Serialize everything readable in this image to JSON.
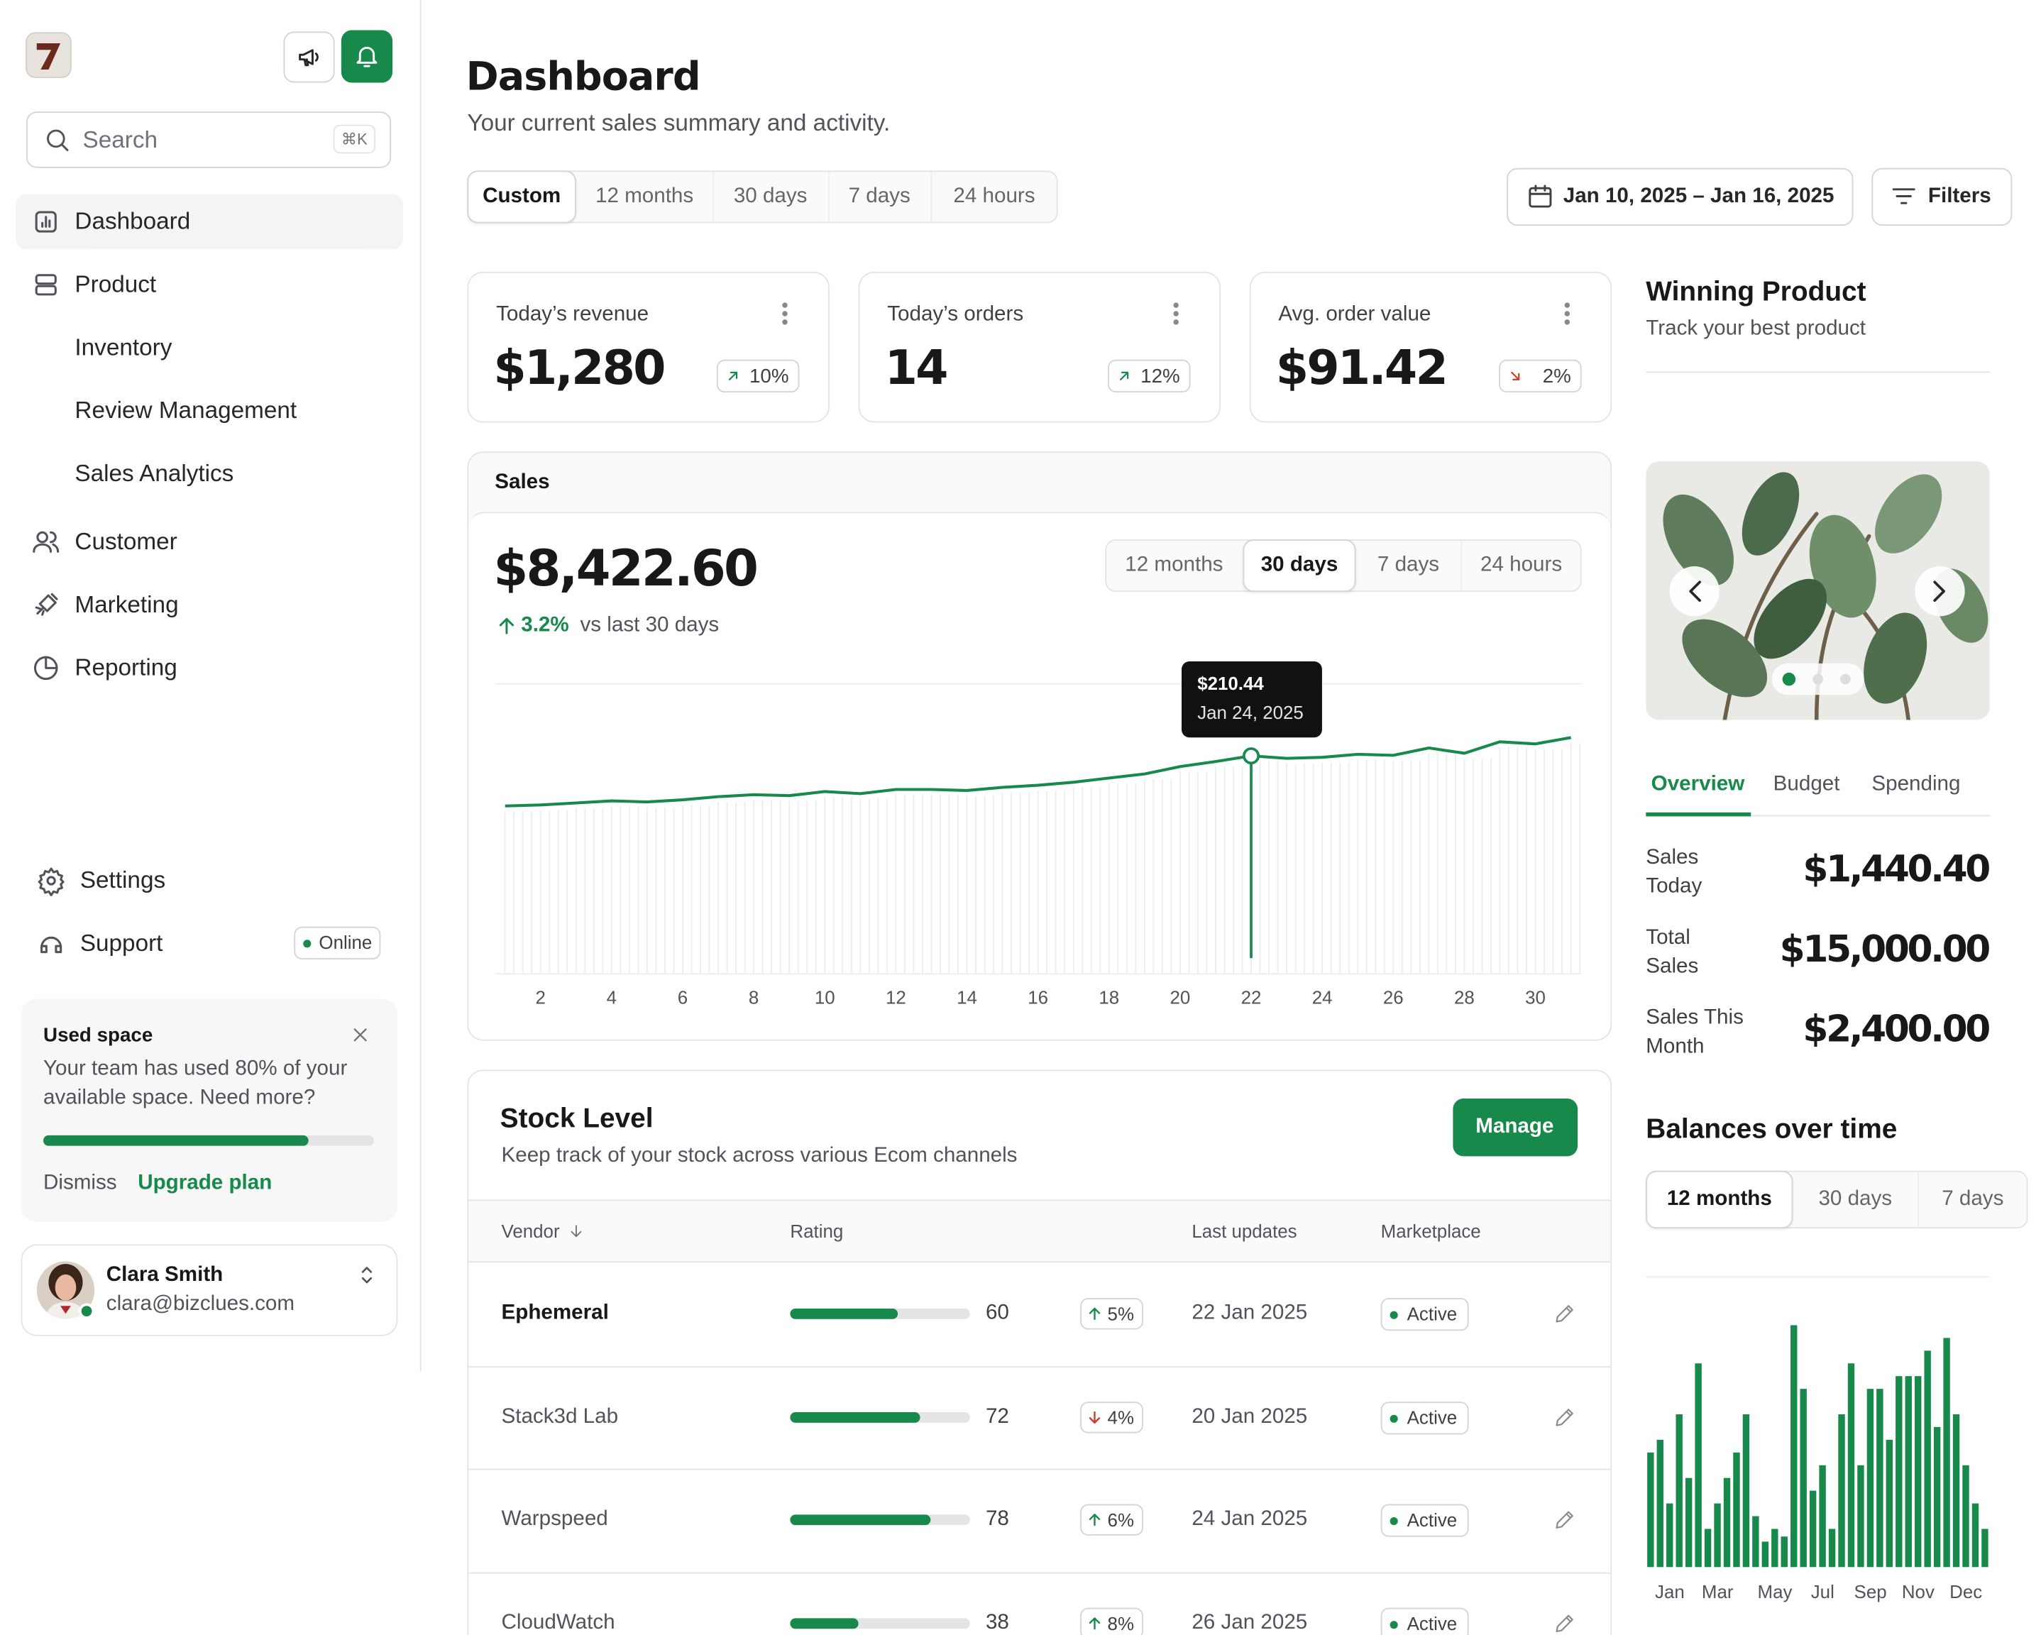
{
  "sidebar": {
    "search": {
      "placeholder": "Search",
      "shortcut": "⌘K"
    },
    "nav": [
      "Dashboard",
      "Product",
      "Inventory",
      "Review Management",
      "Sales Analytics",
      "Customer",
      "Marketing",
      "Reporting"
    ],
    "active_nav": 0,
    "footer_nav": [
      "Settings",
      "Support"
    ],
    "status": "Online",
    "storage": {
      "title": "Used space",
      "message": "Your team has used 80% of your available space. Need more?",
      "used_percent": 80,
      "dismiss": "Dismiss",
      "upgrade": "Upgrade plan"
    },
    "user": {
      "name": "Clara Smith",
      "email": "clara@bizclues.com"
    }
  },
  "header": {
    "title": "Dashboard",
    "subtitle": "Your current sales summary and activity.",
    "ranges": [
      "Custom",
      "12 months",
      "30 days",
      "7 days",
      "24 hours"
    ],
    "selected_range": 0,
    "date_range": "Jan 10, 2025 – Jan 16, 2025",
    "filters": "Filters"
  },
  "stats": [
    {
      "label": "Today’s revenue",
      "value": "$1,280",
      "change": "10%",
      "trend": "up"
    },
    {
      "label": "Today’s orders",
      "value": "14",
      "change": "12%",
      "trend": "up"
    },
    {
      "label": "Avg. order value",
      "value": "$91.42",
      "change": "2%",
      "trend": "down"
    }
  ],
  "sales": {
    "title": "Sales",
    "total": "$8,422.60",
    "change": "3.2%",
    "comparison": "vs last 30 days",
    "ranges": [
      "12 months",
      "30 days",
      "7 days",
      "24 hours"
    ],
    "selected_range": 1
  },
  "stock": {
    "title": "Stock Level",
    "subtitle": "Keep track of your stock across various Ecom channels",
    "action": "Manage",
    "columns": [
      "Vendor",
      "Rating",
      "Last updates",
      "Marketplace"
    ],
    "rows": [
      {
        "vendor": "Ephemeral",
        "rating": 60,
        "change": "5%",
        "trend": "up",
        "updated": "22 Jan 2025",
        "status": "Active"
      },
      {
        "vendor": "Stack3d Lab",
        "rating": 72,
        "change": "4%",
        "trend": "down",
        "updated": "20 Jan 2025",
        "status": "Active"
      },
      {
        "vendor": "Warpspeed",
        "rating": 78,
        "change": "6%",
        "trend": "up",
        "updated": "24 Jan 2025",
        "status": "Active"
      },
      {
        "vendor": "CloudWatch",
        "rating": 38,
        "change": "8%",
        "trend": "up",
        "updated": "26 Jan 2025",
        "status": "Active"
      }
    ]
  },
  "winning_product": {
    "title": "Winning Product",
    "subtitle": "Track your best product",
    "tabs": [
      "Overview",
      "Budget",
      "Spending"
    ],
    "selected_tab": 0,
    "metrics": [
      {
        "label": "Sales Today",
        "value": "$1,440.40"
      },
      {
        "label": "Total Sales",
        "value": "$15,000.00"
      },
      {
        "label": "Sales This Month",
        "value": "$2,400.00"
      }
    ]
  },
  "balances": {
    "title": "Balances over time",
    "ranges": [
      "12 months",
      "30 days",
      "7 days"
    ],
    "selected_range": 0
  },
  "chart_data": [
    {
      "type": "line",
      "color": "#16894b",
      "x": [
        1,
        2,
        3,
        4,
        5,
        6,
        7,
        8,
        9,
        10,
        11,
        12,
        13,
        14,
        15,
        16,
        17,
        18,
        19,
        20,
        21,
        22,
        23,
        24,
        25,
        26,
        27,
        28,
        29,
        30,
        31
      ],
      "values": [
        162,
        163,
        165,
        167,
        166,
        168,
        171,
        173,
        172,
        176,
        174,
        178,
        178,
        177,
        180,
        182,
        185,
        189,
        193,
        200,
        205,
        210.44,
        208,
        209,
        212,
        211,
        218,
        213,
        224,
        222,
        228
      ],
      "xlim": [
        0.75,
        31.3
      ],
      "xticks": [
        2,
        4,
        6,
        8,
        10,
        12,
        14,
        16,
        18,
        20,
        22,
        24,
        26,
        28,
        30
      ],
      "ylim": [
        0,
        280
      ],
      "highlight": {
        "x": 22,
        "label": "$210.44",
        "date": "Jan 24, 2025"
      }
    },
    {
      "type": "bar",
      "color": "#16894b",
      "categories": [
        null,
        null,
        "Jan",
        null,
        null,
        null,
        null,
        "Mar",
        null,
        null,
        null,
        null,
        null,
        "May",
        null,
        null,
        null,
        null,
        "Jul",
        null,
        null,
        null,
        null,
        "Sep",
        null,
        null,
        null,
        null,
        "Nov",
        null,
        null,
        null,
        null,
        "Dec",
        null,
        null
      ],
      "values": [
        45,
        50,
        25,
        60,
        35,
        80,
        15,
        25,
        35,
        45,
        60,
        20,
        10,
        15,
        12,
        95,
        70,
        30,
        40,
        15,
        60,
        80,
        40,
        70,
        70,
        50,
        75,
        75,
        75,
        85,
        55,
        90,
        60,
        40,
        25,
        15
      ],
      "ylim": [
        0,
        100
      ]
    }
  ]
}
